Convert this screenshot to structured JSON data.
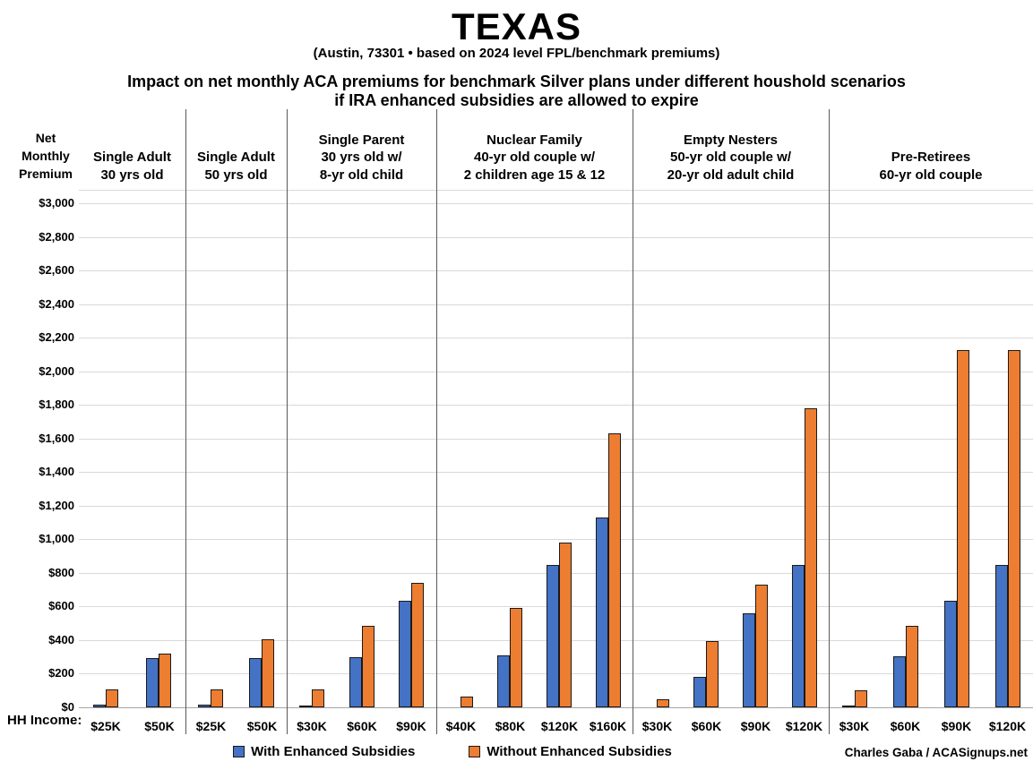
{
  "header": {
    "title": "TEXAS",
    "subtitle": "(Austin, 73301 • based on 2024 level FPL/benchmark premiums)",
    "heading_line1": "Impact on net monthly ACA premiums for benchmark Silver plans under different houshold scenarios",
    "heading_line2": "if IRA enhanced subsidies are allowed to expire"
  },
  "y_axis": {
    "title_lines": [
      "Net",
      "Monthly",
      "Premium"
    ]
  },
  "x_axis": {
    "label": "HH Income:"
  },
  "legend": {
    "items": [
      {
        "label": "With Enhanced Subsidies",
        "color": "#4472C4"
      },
      {
        "label": "Without Enhanced Subsidies",
        "color": "#ED7D31"
      }
    ]
  },
  "credit": "Charles Gaba / ACASignups.net",
  "chart_data": {
    "type": "bar",
    "title": "TEXAS",
    "subtitle": "(Austin, 73301 • based on 2024 level FPL/benchmark premiums)",
    "ylabel": "Net Monthly Premium",
    "xlabel": "HH Income",
    "ylim": [
      0,
      3000
    ],
    "ytick_step": 200,
    "ytick_format": "$#,##0",
    "grid": true,
    "legend_position": "bottom",
    "series_names": [
      "With Enhanced Subsidies",
      "Without Enhanced Subsidies"
    ],
    "colors": {
      "with_enhanced": "#4472C4",
      "without_enhanced": "#ED7D31",
      "bar_border": "#1a1a1a",
      "gridline": "#d9d9d9",
      "zero_axis_line": "#a6a6a6",
      "separator": "#595959"
    },
    "groups": [
      {
        "header_lines": [
          "Single Adult",
          "30 yrs old"
        ],
        "bars": [
          {
            "income": "$25K",
            "with_enhanced": 15,
            "without_enhanced": 105
          },
          {
            "income": "$50K",
            "with_enhanced": 295,
            "without_enhanced": 320
          }
        ]
      },
      {
        "header_lines": [
          "Single Adult",
          "50 yrs old"
        ],
        "bars": [
          {
            "income": "$25K",
            "with_enhanced": 15,
            "without_enhanced": 105
          },
          {
            "income": "$50K",
            "with_enhanced": 295,
            "without_enhanced": 405
          }
        ]
      },
      {
        "header_lines": [
          "Single Parent",
          "30 yrs old w/",
          "8-yr old child"
        ],
        "bars": [
          {
            "income": "$30K",
            "with_enhanced": 10,
            "without_enhanced": 105
          },
          {
            "income": "$60K",
            "with_enhanced": 300,
            "without_enhanced": 485
          },
          {
            "income": "$90K",
            "with_enhanced": 635,
            "without_enhanced": 740
          }
        ]
      },
      {
        "header_lines": [
          "Nuclear Family",
          "40-yr old couple w/",
          "2 children age 15 & 12"
        ],
        "bars": [
          {
            "income": "$40K",
            "with_enhanced": 0,
            "without_enhanced": 65
          },
          {
            "income": "$80K",
            "with_enhanced": 310,
            "without_enhanced": 590
          },
          {
            "income": "$120K",
            "with_enhanced": 845,
            "without_enhanced": 980
          },
          {
            "income": "$160K",
            "with_enhanced": 1130,
            "without_enhanced": 1630
          }
        ]
      },
      {
        "header_lines": [
          "Empty Nesters",
          "50-yr old couple w/",
          "20-yr old adult child"
        ],
        "bars": [
          {
            "income": "$30K",
            "with_enhanced": 0,
            "without_enhanced": 50
          },
          {
            "income": "$60K",
            "with_enhanced": 180,
            "without_enhanced": 395
          },
          {
            "income": "$90K",
            "with_enhanced": 560,
            "without_enhanced": 730
          },
          {
            "income": "$120K",
            "with_enhanced": 845,
            "without_enhanced": 1780
          }
        ]
      },
      {
        "header_lines": [
          "Pre-Retirees",
          "60-yr old couple"
        ],
        "bars": [
          {
            "income": "$30K",
            "with_enhanced": 10,
            "without_enhanced": 100
          },
          {
            "income": "$60K",
            "with_enhanced": 305,
            "without_enhanced": 485
          },
          {
            "income": "$90K",
            "with_enhanced": 635,
            "without_enhanced": 2125
          },
          {
            "income": "$120K",
            "with_enhanced": 845,
            "without_enhanced": 2125
          }
        ]
      }
    ]
  }
}
